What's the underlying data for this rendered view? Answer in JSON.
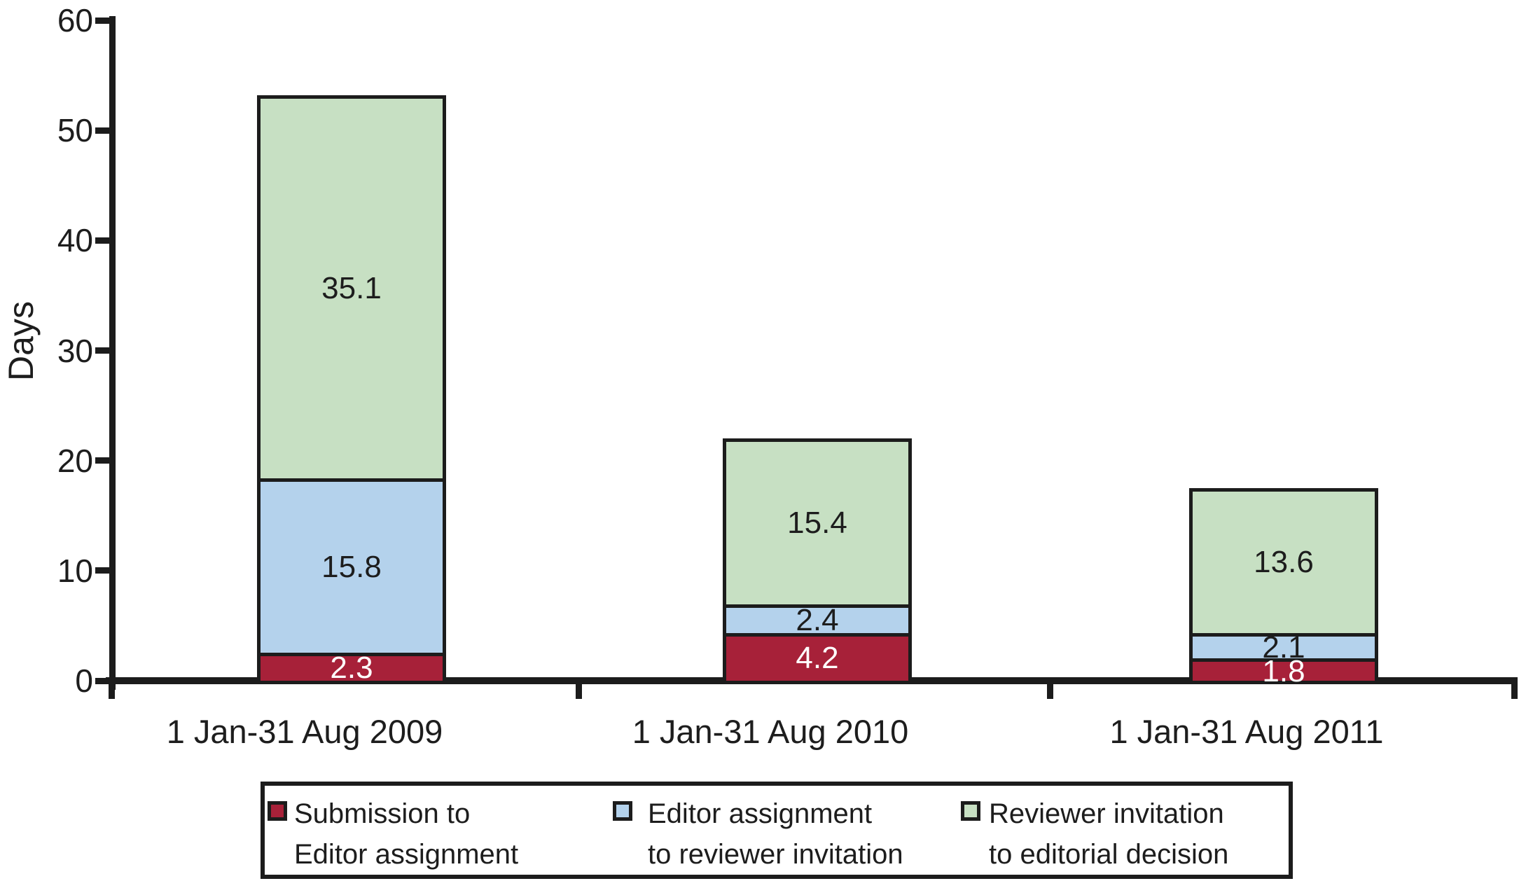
{
  "chart_data": {
    "type": "bar",
    "stacked": true,
    "title": "",
    "xlabel": "",
    "ylabel": "Days",
    "ylim": [
      0,
      60
    ],
    "yticks": [
      0,
      10,
      20,
      30,
      40,
      50,
      60
    ],
    "grid": false,
    "legend_position": "bottom",
    "axis_color": "#1c1c1c",
    "categories": [
      "1 Jan-31 Aug 2009",
      "1 Jan-31 Aug 2010",
      "1 Jan-31 Aug 2011"
    ],
    "series": [
      {
        "name": "Submission to Editor assignment",
        "legend_lines": [
          "Submission to",
          "Editor assignment"
        ],
        "color": "#a72139",
        "label_color": "#ffffff",
        "values": [
          2.3,
          4.2,
          1.8
        ]
      },
      {
        "name": "Editor assignment to reviewer invitation",
        "legend_lines": [
          "Editor assignment",
          "to reviewer invitation"
        ],
        "color": "#b4d2ec",
        "label_color": "#1d1d1d",
        "values": [
          15.8,
          2.4,
          2.1
        ]
      },
      {
        "name": "Reviewer invitation to editorial decision",
        "legend_lines": [
          "Reviewer invitation",
          "to editorial decision"
        ],
        "color": "#c7e0c3",
        "label_color": "#1d1d1d",
        "values": [
          35.1,
          15.4,
          13.6
        ]
      }
    ],
    "totals": [
      53.2,
      22.0,
      17.5
    ]
  }
}
